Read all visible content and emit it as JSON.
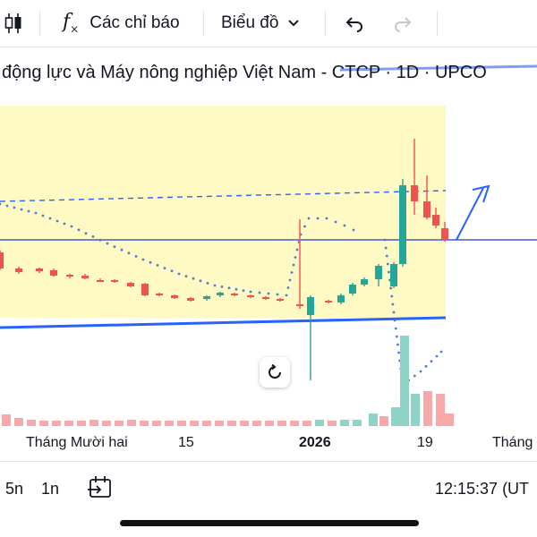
{
  "toolbar": {
    "indicators_label": "Các chỉ báo",
    "chart_type_label": "Biểu đồ"
  },
  "chart": {
    "title": "động lực và Máy nông nghiệp Việt Nam - CTCP · 1D · UPCO",
    "time_labels": [
      "Tháng Mười hai",
      "15",
      "2026",
      "19",
      "Tháng"
    ]
  },
  "bottom": {
    "range_5n": "5n",
    "range_1n": "1n",
    "clock": "12:15:37 (UT"
  },
  "colors": {
    "up": "#26a69a",
    "down": "#ef5350",
    "vol_up": "#8fd3c6",
    "vol_down": "#f7a8a8",
    "trendline": "#2962ff",
    "highlight": "#fff9c4"
  },
  "icons": [
    "candles-icon",
    "fx-icon",
    "chevron-down-icon",
    "undo-icon",
    "redo-icon",
    "replay-icon",
    "reset-icon"
  ]
}
